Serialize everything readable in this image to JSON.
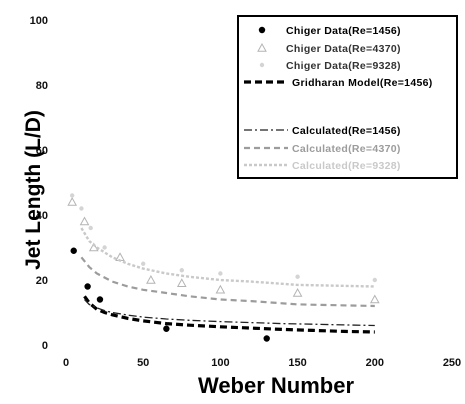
{
  "chart_data": {
    "type": "scatter",
    "xlabel": "Weber Number",
    "ylabel": "Jet Length (L/D)",
    "xlim": [
      0,
      250
    ],
    "ylim": [
      0,
      100
    ],
    "xticks": [
      0,
      50,
      100,
      150,
      200,
      250
    ],
    "yticks": [
      0,
      20,
      40,
      60,
      80,
      100
    ],
    "grid": false,
    "legend_position": "top-right",
    "series": [
      {
        "name": "Chiger Data(Re=1456)",
        "style": "marker-dot",
        "color": "#000000",
        "x": [
          5,
          14,
          22,
          65,
          130
        ],
        "y": [
          29,
          18,
          14,
          5,
          2
        ]
      },
      {
        "name": "Chiger Data(Re=4370)",
        "style": "marker-triangle",
        "color": "#b4b4b4",
        "x": [
          4,
          12,
          18,
          35,
          55,
          75,
          100,
          150,
          200
        ],
        "y": [
          44,
          38,
          30,
          27,
          20,
          19,
          17,
          16,
          14
        ]
      },
      {
        "name": "Chiger Data(Re=9328)",
        "style": "marker-dot-faint",
        "color": "#cccccc",
        "x": [
          4,
          10,
          16,
          25,
          50,
          75,
          100,
          150,
          200
        ],
        "y": [
          46,
          42,
          36,
          30,
          25,
          23,
          22,
          21,
          20
        ]
      },
      {
        "name": "Gridharan Model(Re=1456)",
        "style": "thick-dash",
        "color": "#000000",
        "x": [
          12,
          15,
          20,
          25,
          30,
          40,
          50,
          65,
          80,
          100,
          120,
          140,
          160,
          180,
          200
        ],
        "y": [
          15,
          13,
          11,
          10,
          9.3,
          8.2,
          7.4,
          6.6,
          6.1,
          5.6,
          5.2,
          4.8,
          4.5,
          4.2,
          4
        ]
      },
      {
        "name": "Calculated(Re=1456)",
        "style": "dash-dot",
        "color": "#222222",
        "x": [
          12,
          15,
          20,
          25,
          30,
          40,
          50,
          65,
          80,
          100,
          120,
          140,
          160,
          180,
          200
        ],
        "y": [
          14,
          12.5,
          11.4,
          10.6,
          10,
          9.2,
          8.6,
          8,
          7.6,
          7.2,
          6.9,
          6.6,
          6.4,
          6.2,
          6
        ]
      },
      {
        "name": "Calculated(Re=4370)",
        "style": "light-dash",
        "color": "#9c9c9c",
        "x": [
          10,
          15,
          20,
          30,
          40,
          50,
          65,
          80,
          100,
          120,
          150,
          200
        ],
        "y": [
          27,
          24,
          22,
          19.5,
          18,
          17,
          16,
          15,
          14,
          13.5,
          12.5,
          12
        ]
      },
      {
        "name": "Calculated(Re=9328)",
        "style": "faint-hatch",
        "color": "#c9c9c9",
        "x": [
          10,
          15,
          20,
          30,
          40,
          50,
          65,
          80,
          100,
          120,
          150,
          200
        ],
        "y": [
          36,
          32,
          30,
          27,
          25,
          23.5,
          22,
          21,
          20,
          19.5,
          18.5,
          18
        ]
      }
    ]
  }
}
